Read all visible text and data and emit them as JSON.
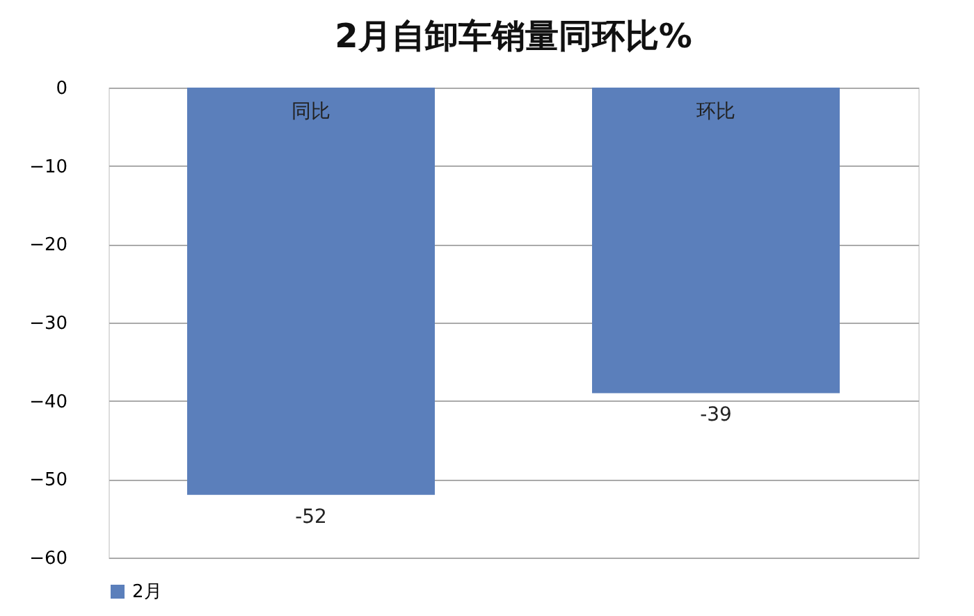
{
  "chart_data": {
    "type": "bar",
    "title": "2月自卸车销量同环比%",
    "categories": [
      "同比",
      "环比"
    ],
    "series": [
      {
        "name": "2月",
        "color": "#5b7fbb",
        "values": [
          -52,
          -39
        ]
      }
    ],
    "ylim": [
      -60,
      0
    ],
    "yticks": [
      0,
      -10,
      -20,
      -30,
      -40,
      -50,
      -60
    ],
    "grid": "y",
    "legend": "bottom",
    "data_labels": true
  }
}
